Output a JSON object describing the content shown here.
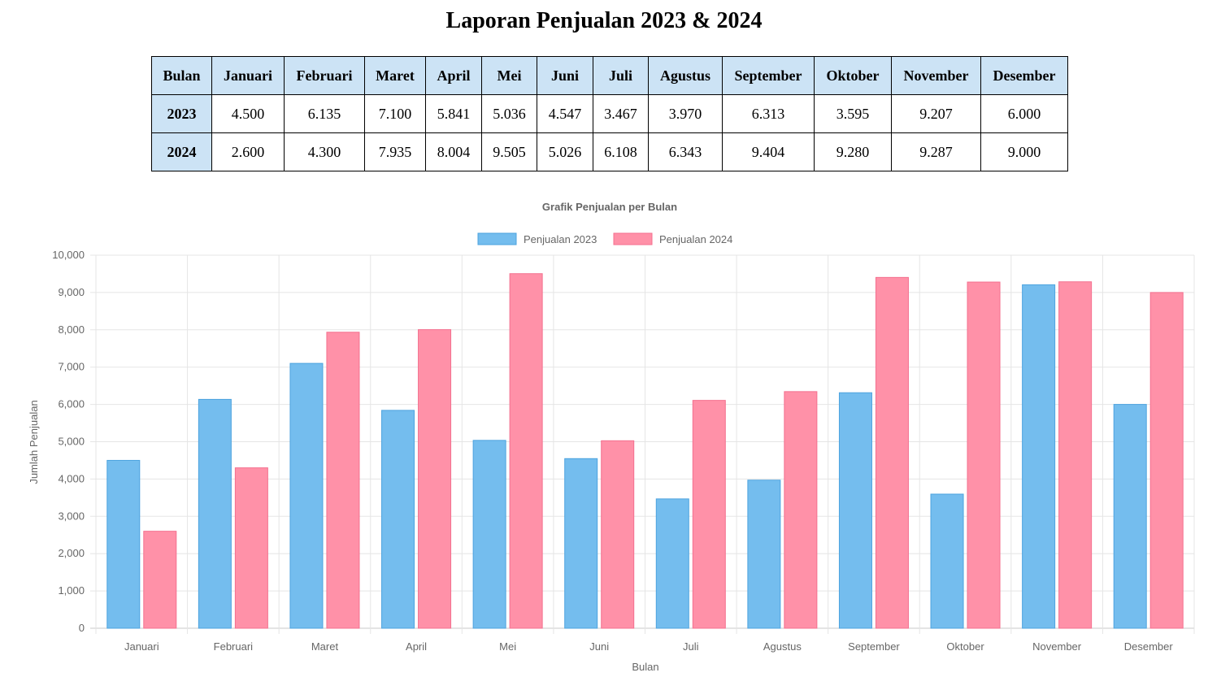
{
  "page": {
    "title": "Laporan Penjualan 2023 & 2024"
  },
  "table": {
    "header_label": "Bulan",
    "months": [
      "Januari",
      "Februari",
      "Maret",
      "April",
      "Mei",
      "Juni",
      "Juli",
      "Agustus",
      "September",
      "Oktober",
      "November",
      "Desember"
    ],
    "rows": [
      {
        "year": "2023",
        "values": [
          "4.500",
          "6.135",
          "7.100",
          "5.841",
          "5.036",
          "4.547",
          "3.467",
          "3.970",
          "6.313",
          "3.595",
          "9.207",
          "6.000"
        ]
      },
      {
        "year": "2024",
        "values": [
          "2.600",
          "4.300",
          "7.935",
          "8.004",
          "9.505",
          "5.026",
          "6.108",
          "6.343",
          "9.404",
          "9.280",
          "9.287",
          "9.000"
        ]
      }
    ]
  },
  "chart_data": {
    "type": "bar",
    "title": "Grafik Penjualan per Bulan",
    "xlabel": "Bulan",
    "ylabel": "Jumlah Penjualan",
    "ylim": [
      0,
      10000
    ],
    "yticks": [
      "0",
      "1,000",
      "2,000",
      "3,000",
      "4,000",
      "5,000",
      "6,000",
      "7,000",
      "8,000",
      "9,000",
      "10,000"
    ],
    "grid": true,
    "legend_position": "top",
    "categories": [
      "Januari",
      "Februari",
      "Maret",
      "April",
      "Mei",
      "Juni",
      "Juli",
      "Agustus",
      "September",
      "Oktober",
      "November",
      "Desember"
    ],
    "series": [
      {
        "name": "Penjualan 2023",
        "fill": "#74bdee",
        "stroke": "#4da3df",
        "values": [
          4500,
          6135,
          7100,
          5841,
          5036,
          4547,
          3467,
          3970,
          6313,
          3595,
          9207,
          6000
        ]
      },
      {
        "name": "Penjualan 2024",
        "fill": "#ff91a8",
        "stroke": "#f4708f",
        "values": [
          2600,
          4300,
          7935,
          8004,
          9505,
          5026,
          6108,
          6343,
          9404,
          9280,
          9287,
          9000
        ]
      }
    ]
  }
}
